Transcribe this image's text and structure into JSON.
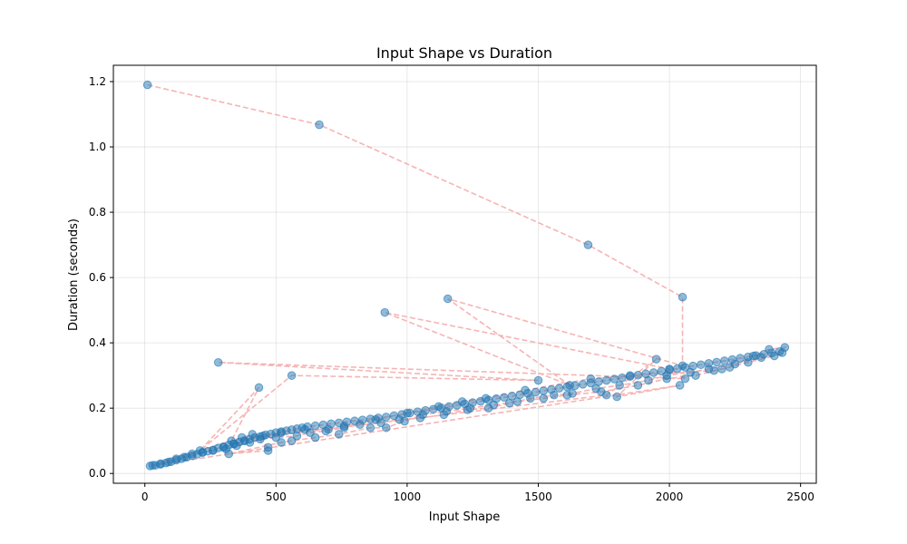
{
  "chart_data": {
    "type": "scatter",
    "title": "Input Shape vs Duration",
    "xlabel": "Input Shape",
    "ylabel": "Duration (seconds)",
    "xlim": [
      -120,
      2560
    ],
    "ylim": [
      -0.03,
      1.25
    ],
    "xticks": [
      0,
      500,
      1000,
      1500,
      2000,
      2500
    ],
    "yticks": [
      0.0,
      0.2,
      0.4,
      0.6,
      0.8,
      1.0,
      1.2
    ],
    "grid": true,
    "series": [
      {
        "marker": "circle",
        "color": "#1f77b4",
        "line_style": "dashed",
        "line_color": "#f4a7a7",
        "points": [
          [
            10,
            1.19
          ],
          [
            665,
            1.068
          ],
          [
            1690,
            0.7
          ],
          [
            2050,
            0.54
          ],
          [
            2050,
            0.33
          ],
          [
            1155,
            0.535
          ],
          [
            1620,
            0.27
          ],
          [
            915,
            0.493
          ],
          [
            2000,
            0.32
          ],
          [
            2060,
            0.29
          ],
          [
            280,
            0.34
          ],
          [
            1500,
            0.285
          ],
          [
            560,
            0.3
          ],
          [
            210,
            0.07
          ],
          [
            435,
            0.263
          ],
          [
            330,
            0.1
          ],
          [
            1760,
            0.24
          ],
          [
            1950,
            0.35
          ],
          [
            1800,
            0.235
          ],
          [
            2040,
            0.27
          ],
          [
            20,
            0.023
          ],
          [
            40,
            0.025
          ],
          [
            60,
            0.028
          ],
          [
            80,
            0.032
          ],
          [
            100,
            0.036
          ],
          [
            120,
            0.041
          ],
          [
            140,
            0.045
          ],
          [
            160,
            0.05
          ],
          [
            180,
            0.054
          ],
          [
            200,
            0.059
          ],
          [
            220,
            0.064
          ],
          [
            240,
            0.068
          ],
          [
            260,
            0.072
          ],
          [
            280,
            0.078
          ],
          [
            300,
            0.082
          ],
          [
            320,
            0.087
          ],
          [
            340,
            0.091
          ],
          [
            360,
            0.096
          ],
          [
            380,
            0.1
          ],
          [
            400,
            0.105
          ],
          [
            420,
            0.11
          ],
          [
            440,
            0.113
          ],
          [
            460,
            0.118
          ],
          [
            480,
            0.121
          ],
          [
            500,
            0.125
          ],
          [
            520,
            0.128
          ],
          [
            540,
            0.131
          ],
          [
            560,
            0.134
          ],
          [
            580,
            0.137
          ],
          [
            600,
            0.14
          ],
          [
            620,
            0.143
          ],
          [
            650,
            0.146
          ],
          [
            680,
            0.149
          ],
          [
            710,
            0.152
          ],
          [
            740,
            0.155
          ],
          [
            770,
            0.158
          ],
          [
            800,
            0.161
          ],
          [
            830,
            0.164
          ],
          [
            860,
            0.167
          ],
          [
            890,
            0.17
          ],
          [
            920,
            0.173
          ],
          [
            950,
            0.177
          ],
          [
            980,
            0.181
          ],
          [
            1010,
            0.185
          ],
          [
            1040,
            0.189
          ],
          [
            1070,
            0.193
          ],
          [
            1100,
            0.197
          ],
          [
            1130,
            0.201
          ],
          [
            1160,
            0.205
          ],
          [
            1190,
            0.209
          ],
          [
            1220,
            0.213
          ],
          [
            1250,
            0.217
          ],
          [
            1280,
            0.221
          ],
          [
            1310,
            0.225
          ],
          [
            1340,
            0.229
          ],
          [
            1370,
            0.233
          ],
          [
            1400,
            0.237
          ],
          [
            1430,
            0.241
          ],
          [
            1460,
            0.245
          ],
          [
            1490,
            0.249
          ],
          [
            1520,
            0.253
          ],
          [
            1550,
            0.257
          ],
          [
            1580,
            0.261
          ],
          [
            1610,
            0.265
          ],
          [
            1640,
            0.269
          ],
          [
            1670,
            0.273
          ],
          [
            1700,
            0.277
          ],
          [
            1730,
            0.281
          ],
          [
            1760,
            0.285
          ],
          [
            1790,
            0.289
          ],
          [
            1820,
            0.293
          ],
          [
            1850,
            0.297
          ],
          [
            1880,
            0.301
          ],
          [
            1910,
            0.305
          ],
          [
            1940,
            0.309
          ],
          [
            1970,
            0.313
          ],
          [
            2000,
            0.317
          ],
          [
            2030,
            0.321
          ],
          [
            2060,
            0.325
          ],
          [
            2090,
            0.329
          ],
          [
            2120,
            0.333
          ],
          [
            2150,
            0.337
          ],
          [
            2180,
            0.341
          ],
          [
            2210,
            0.345
          ],
          [
            2240,
            0.349
          ],
          [
            2270,
            0.353
          ],
          [
            2300,
            0.357
          ],
          [
            2330,
            0.361
          ],
          [
            2360,
            0.365
          ],
          [
            2390,
            0.369
          ],
          [
            2420,
            0.373
          ],
          [
            2440,
            0.386
          ],
          [
            2380,
            0.38
          ],
          [
            2320,
            0.36
          ],
          [
            2230,
            0.325
          ],
          [
            2170,
            0.315
          ],
          [
            1850,
            0.3
          ],
          [
            1700,
            0.29
          ],
          [
            1450,
            0.255
          ],
          [
            1300,
            0.23
          ],
          [
            1210,
            0.22
          ],
          [
            1120,
            0.205
          ],
          [
            1000,
            0.185
          ],
          [
            880,
            0.165
          ],
          [
            760,
            0.145
          ],
          [
            700,
            0.135
          ],
          [
            610,
            0.135
          ],
          [
            520,
            0.125
          ],
          [
            450,
            0.115
          ],
          [
            380,
            0.1
          ],
          [
            340,
            0.09
          ],
          [
            300,
            0.08
          ],
          [
            260,
            0.07
          ],
          [
            220,
            0.065
          ],
          [
            180,
            0.06
          ],
          [
            150,
            0.05
          ],
          [
            120,
            0.045
          ],
          [
            90,
            0.035
          ],
          [
            60,
            0.03
          ],
          [
            30,
            0.025
          ],
          [
            370,
            0.11
          ],
          [
            410,
            0.12
          ],
          [
            470,
            0.08
          ],
          [
            470,
            0.07
          ],
          [
            320,
            0.06
          ],
          [
            520,
            0.095
          ],
          [
            560,
            0.1
          ],
          [
            650,
            0.11
          ],
          [
            740,
            0.12
          ],
          [
            860,
            0.14
          ],
          [
            920,
            0.14
          ],
          [
            990,
            0.16
          ],
          [
            1060,
            0.18
          ],
          [
            1150,
            0.19
          ],
          [
            1240,
            0.2
          ],
          [
            1330,
            0.21
          ],
          [
            1420,
            0.22
          ],
          [
            1520,
            0.23
          ],
          [
            1610,
            0.24
          ],
          [
            1740,
            0.25
          ],
          [
            1880,
            0.27
          ],
          [
            1990,
            0.29
          ],
          [
            2100,
            0.3
          ],
          [
            2200,
            0.32
          ],
          [
            2300,
            0.34
          ],
          [
            2400,
            0.36
          ],
          [
            2430,
            0.37
          ],
          [
            2350,
            0.355
          ],
          [
            2250,
            0.335
          ],
          [
            2150,
            0.32
          ],
          [
            2080,
            0.31
          ],
          [
            1990,
            0.3
          ],
          [
            1920,
            0.285
          ],
          [
            1810,
            0.27
          ],
          [
            1720,
            0.26
          ],
          [
            1630,
            0.245
          ],
          [
            1560,
            0.24
          ],
          [
            1470,
            0.23
          ],
          [
            1390,
            0.215
          ],
          [
            1310,
            0.2
          ],
          [
            1230,
            0.195
          ],
          [
            1140,
            0.18
          ],
          [
            1050,
            0.17
          ],
          [
            970,
            0.165
          ],
          [
            900,
            0.155
          ],
          [
            820,
            0.15
          ],
          [
            760,
            0.14
          ],
          [
            690,
            0.13
          ],
          [
            630,
            0.125
          ],
          [
            580,
            0.115
          ],
          [
            500,
            0.11
          ],
          [
            440,
            0.105
          ],
          [
            400,
            0.095
          ],
          [
            350,
            0.085
          ],
          [
            310,
            0.075
          ]
        ]
      }
    ]
  }
}
